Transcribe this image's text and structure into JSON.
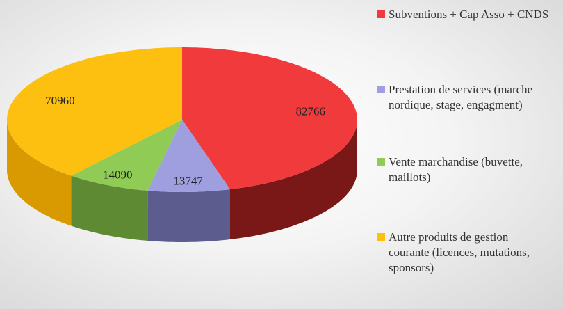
{
  "chart_data": {
    "type": "pie",
    "categories": [
      "Subventions + Cap Asso + CNDS",
      "Prestation de services (marche nordique, stage, engagment)",
      "Vente marchandise (buvette, maillots)",
      "Autre produits de gestion courante (licences, mutations, sponsors)"
    ],
    "values": [
      82766,
      13747,
      14090,
      70960
    ],
    "colors": [
      "#f03a3c",
      "#9f9fe0",
      "#8fcb55",
      "#fdc010"
    ],
    "side_colors": [
      "#7a1717",
      "#5c5c8e",
      "#5e8a34",
      "#d89a00"
    ],
    "legend": "right"
  }
}
